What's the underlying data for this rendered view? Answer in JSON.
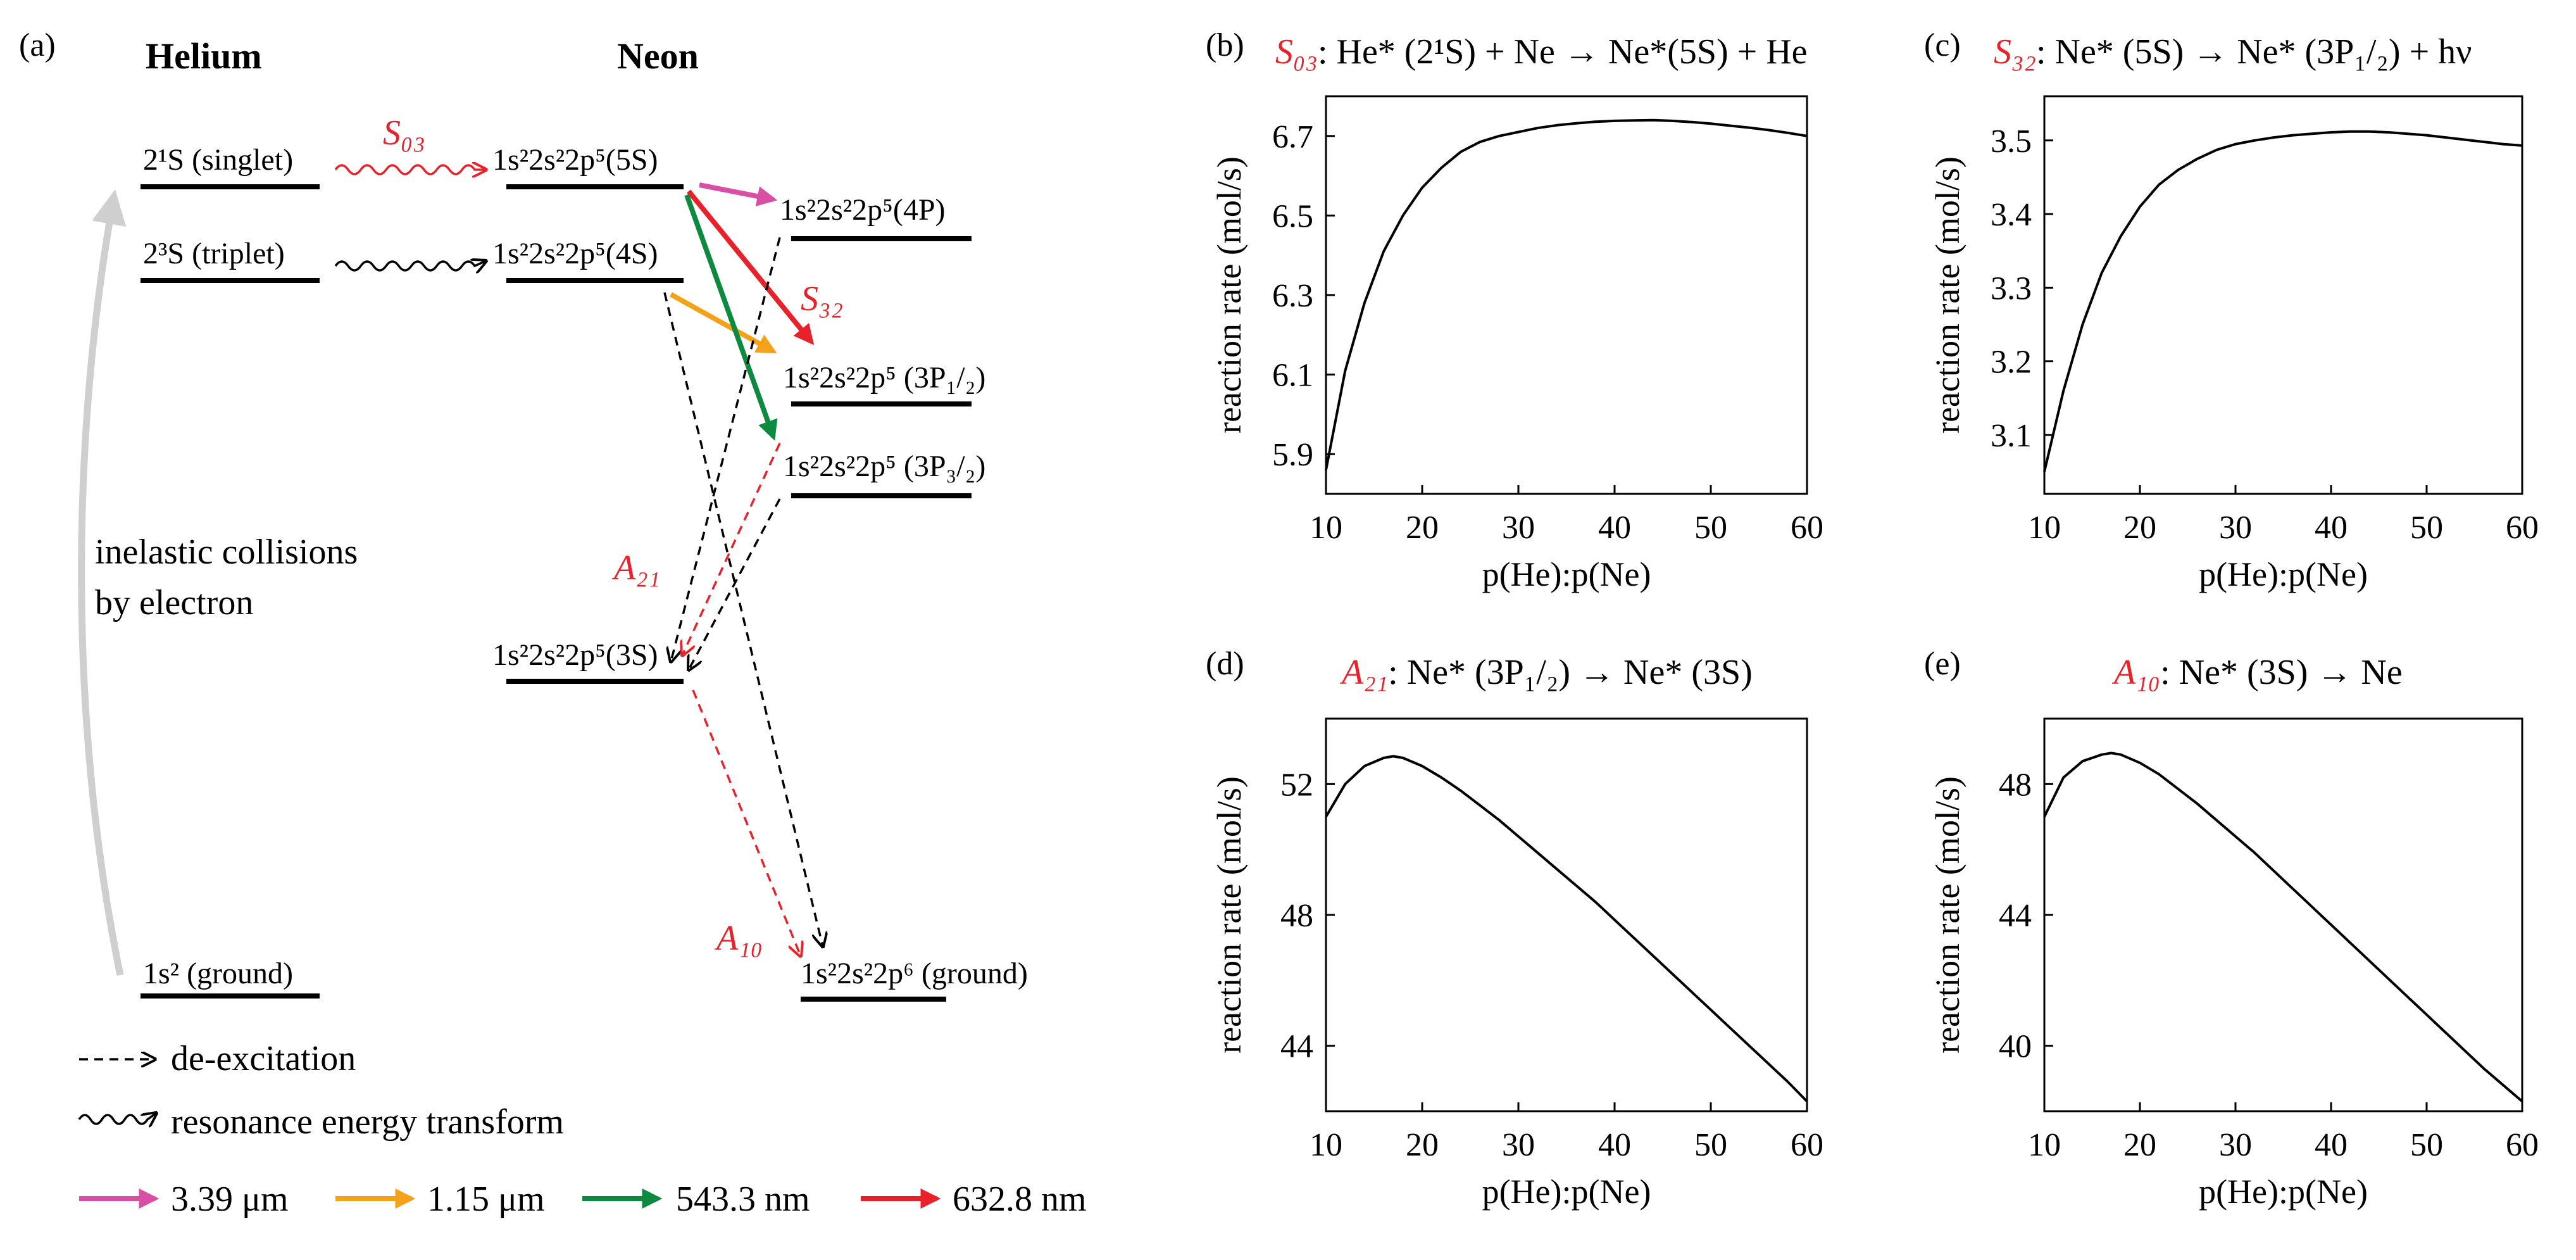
{
  "colors": {
    "red": "#e8212a",
    "pink": "#d94fa6",
    "orange": "#f5a21b",
    "green": "#0e8a40",
    "gray": "#cfcfcf",
    "black": "#000000"
  },
  "diagram": {
    "panel_label": "(a)",
    "helium_title": "Helium",
    "neon_title": "Neon",
    "he_singlet": "2¹S (singlet)",
    "he_triplet": "2³S (triplet)",
    "he_ground": "1s² (ground)",
    "s03": "S₀₃",
    "s32": "S₃₂",
    "a21": "A₂₁",
    "a10": "A₁₀",
    "ne_5s": "1s²2s²2p⁵(5S)",
    "ne_4s": "1s²2s²2p⁵(4S)",
    "ne_4p": "1s²2s²2p⁵(4P)",
    "ne_3p12": "1s²2s²2p⁵ (3P₁/₂)",
    "ne_3p32": "1s²2s²2p⁵ (3P₃/₂)",
    "ne_3s": "1s²2s²2p⁵(3S)",
    "ne_ground": "1s²2s²2p⁶ (ground)",
    "inelastic_1": "inelastic collisions",
    "inelastic_2": "by electron",
    "legend_deexc": "de-excitation",
    "legend_resonance": "resonance energy transform",
    "legend_wl_1": "3.39 μm",
    "legend_wl_2": "1.15 μm",
    "legend_wl_3": "543.3 nm",
    "legend_wl_4": "632.8 nm"
  },
  "chart_data": [
    {
      "panel": "(b)",
      "type": "line",
      "title_symbol": "S₀₃",
      "title_text": ": He* (2¹S) + Ne → Ne*(5S) + He",
      "xlabel": "p(He):p(Ne)",
      "ylabel": "reaction rate (mol/s)",
      "xlim": [
        10,
        60
      ],
      "ylim": [
        5.8,
        6.8
      ],
      "xticks": [
        10,
        20,
        30,
        40,
        50,
        60
      ],
      "yticks": [
        5.9,
        6.1,
        6.3,
        6.5,
        6.7
      ],
      "x": [
        10,
        12,
        14,
        16,
        18,
        20,
        22,
        24,
        26,
        28,
        30,
        32,
        34,
        36,
        38,
        40,
        42,
        44,
        46,
        48,
        50,
        52,
        54,
        56,
        58,
        60
      ],
      "y": [
        5.86,
        6.11,
        6.28,
        6.41,
        6.5,
        6.57,
        6.62,
        6.66,
        6.685,
        6.7,
        6.71,
        6.72,
        6.727,
        6.732,
        6.736,
        6.738,
        6.739,
        6.74,
        6.738,
        6.735,
        6.731,
        6.726,
        6.721,
        6.715,
        6.708,
        6.7
      ]
    },
    {
      "panel": "(c)",
      "type": "line",
      "title_symbol": "S₃₂",
      "title_text": ": Ne* (5S) → Ne* (3P₁/₂) + hν",
      "xlabel": "p(He):p(Ne)",
      "ylabel": "reaction rate (mol/s)",
      "xlim": [
        10,
        60
      ],
      "ylim": [
        3.02,
        3.56
      ],
      "xticks": [
        10,
        20,
        30,
        40,
        50,
        60
      ],
      "yticks": [
        3.1,
        3.2,
        3.3,
        3.4,
        3.5
      ],
      "x": [
        10,
        12,
        14,
        16,
        18,
        20,
        22,
        24,
        26,
        28,
        30,
        32,
        34,
        36,
        38,
        40,
        42,
        44,
        46,
        48,
        50,
        52,
        54,
        56,
        58,
        60
      ],
      "y": [
        3.05,
        3.16,
        3.25,
        3.32,
        3.37,
        3.41,
        3.44,
        3.46,
        3.475,
        3.487,
        3.495,
        3.5,
        3.504,
        3.507,
        3.509,
        3.511,
        3.512,
        3.512,
        3.511,
        3.509,
        3.507,
        3.504,
        3.501,
        3.498,
        3.495,
        3.493
      ]
    },
    {
      "panel": "(d)",
      "type": "line",
      "title_symbol": "A₂₁",
      "title_text": ": Ne* (3P₁/₂) → Ne* (3S)",
      "xlabel": "p(He):p(Ne)",
      "ylabel": "reaction rate (mol/s)",
      "xlim": [
        10,
        60
      ],
      "ylim": [
        42,
        54
      ],
      "xticks": [
        10,
        20,
        30,
        40,
        50,
        60
      ],
      "yticks": [
        44,
        48,
        52
      ],
      "x": [
        10,
        12,
        14,
        16,
        17,
        18,
        20,
        22,
        24,
        26,
        28,
        30,
        32,
        34,
        36,
        38,
        40,
        42,
        44,
        46,
        48,
        50,
        52,
        54,
        56,
        58,
        60
      ],
      "y": [
        51.0,
        52.0,
        52.55,
        52.8,
        52.85,
        52.8,
        52.55,
        52.2,
        51.8,
        51.35,
        50.9,
        50.4,
        49.9,
        49.4,
        48.9,
        48.4,
        47.85,
        47.3,
        46.75,
        46.2,
        45.65,
        45.1,
        44.55,
        44.0,
        43.45,
        42.9,
        42.3
      ]
    },
    {
      "panel": "(e)",
      "type": "line",
      "title_symbol": "A₁₀",
      "title_text": ": Ne* (3S) → Ne",
      "xlabel": "p(He):p(Ne)",
      "ylabel": "reaction rate (mol/s)",
      "xlim": [
        10,
        60
      ],
      "ylim": [
        38,
        50
      ],
      "xticks": [
        10,
        20,
        30,
        40,
        50,
        60
      ],
      "yticks": [
        40,
        44,
        48
      ],
      "x": [
        10,
        12,
        14,
        16,
        17,
        18,
        20,
        22,
        24,
        26,
        28,
        30,
        32,
        34,
        36,
        38,
        40,
        42,
        44,
        46,
        48,
        50,
        52,
        54,
        56,
        58,
        60
      ],
      "y": [
        47.0,
        48.2,
        48.7,
        48.9,
        48.95,
        48.9,
        48.65,
        48.3,
        47.85,
        47.4,
        46.9,
        46.4,
        45.9,
        45.35,
        44.8,
        44.25,
        43.7,
        43.15,
        42.6,
        42.05,
        41.5,
        40.95,
        40.4,
        39.85,
        39.3,
        38.8,
        38.3
      ]
    }
  ]
}
